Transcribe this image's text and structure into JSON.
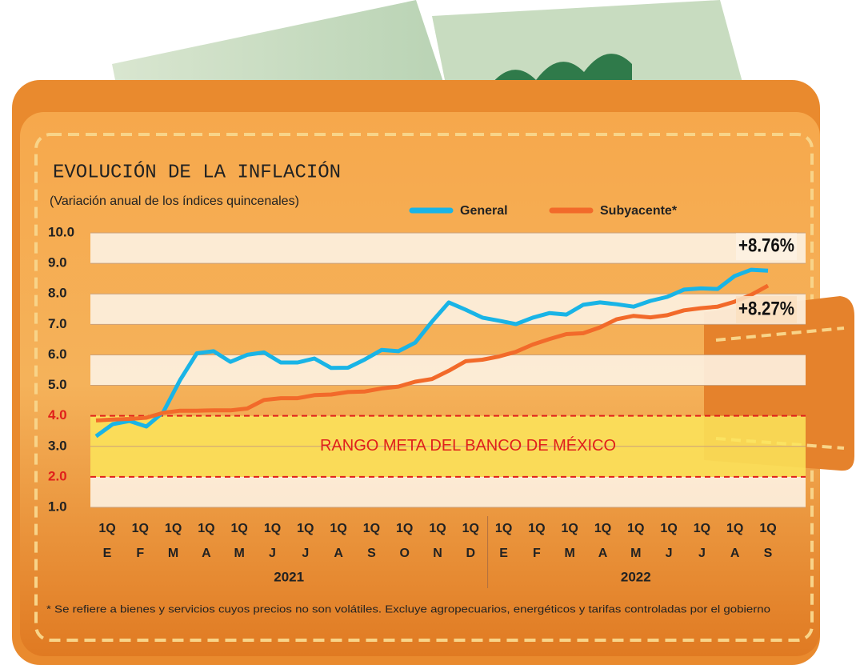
{
  "chart_data": {
    "type": "line",
    "title": "EVOLUCIÓN DE LA INFLACIÓN",
    "subtitle": "(Variación anual de los índices quincenales)",
    "categories": [
      "1Q",
      null,
      "1Q",
      null,
      "1Q",
      null,
      "1Q",
      null,
      "1Q",
      null,
      "1Q",
      null,
      "1Q",
      null,
      "1Q",
      null,
      "1Q",
      null,
      "1Q",
      null,
      "1Q",
      null,
      "1Q",
      null,
      "1Q",
      null,
      "1Q",
      null,
      "1Q",
      null,
      "1Q",
      null,
      "1Q",
      null,
      "1Q",
      null,
      "1Q",
      null,
      "1Q",
      null,
      "1Q"
    ],
    "months": [
      "E",
      "F",
      "M",
      "A",
      "M",
      "J",
      "J",
      "A",
      "S",
      "O",
      "N",
      "D",
      "E",
      "F",
      "M",
      "A",
      "M",
      "J",
      "J",
      "A",
      "S"
    ],
    "years": [
      "2021",
      "2022"
    ],
    "series": [
      {
        "name": "General",
        "color": "#19b4e6",
        "end_label": "+8.76%",
        "values": [
          3.33,
          3.73,
          3.83,
          3.65,
          4.12,
          5.17,
          6.05,
          6.12,
          5.77,
          6.0,
          6.08,
          5.75,
          5.75,
          5.88,
          5.57,
          5.58,
          5.85,
          6.16,
          6.12,
          6.4,
          7.09,
          7.72,
          7.48,
          7.22,
          7.12,
          7.01,
          7.22,
          7.37,
          7.32,
          7.64,
          7.72,
          7.66,
          7.58,
          7.77,
          7.9,
          8.14,
          8.18,
          8.16,
          8.58,
          8.79,
          8.76
        ]
      },
      {
        "name": "Subyacente*",
        "color": "#f26a2a",
        "end_label": "+8.27%",
        "values": [
          3.85,
          3.88,
          3.9,
          3.94,
          4.1,
          4.17,
          4.17,
          4.18,
          4.18,
          4.24,
          4.52,
          4.58,
          4.58,
          4.68,
          4.7,
          4.78,
          4.8,
          4.9,
          4.96,
          5.12,
          5.21,
          5.48,
          5.79,
          5.84,
          5.95,
          6.1,
          6.34,
          6.52,
          6.68,
          6.71,
          6.9,
          7.17,
          7.28,
          7.23,
          7.3,
          7.46,
          7.53,
          7.58,
          7.74,
          7.97,
          8.27
        ]
      }
    ],
    "ylim": [
      1,
      10
    ],
    "yticks": [
      {
        "value": 1,
        "label": "1.0"
      },
      {
        "value": 2,
        "label": "2.0"
      },
      {
        "value": 3,
        "label": "3.0"
      },
      {
        "value": 4,
        "label": "4.0"
      },
      {
        "value": 5,
        "label": "5.0"
      },
      {
        "value": 6,
        "label": "6.0"
      },
      {
        "value": 7,
        "label": "7.0"
      },
      {
        "value": 8,
        "label": "8.0"
      },
      {
        "value": 9,
        "label": "9.0"
      },
      {
        "value": 10,
        "label": "10.0"
      }
    ],
    "target_range": {
      "label": "RANGO META DEL BANCO DE MÉXICO",
      "range": [
        2,
        4
      ],
      "color": "#e0201b"
    },
    "grid": true,
    "footnote": "* Se refiere a bienes y servicios cuyos precios no son volátiles. Excluye agropecuarios, energéticos y tarifas controladas por el gobierno"
  }
}
